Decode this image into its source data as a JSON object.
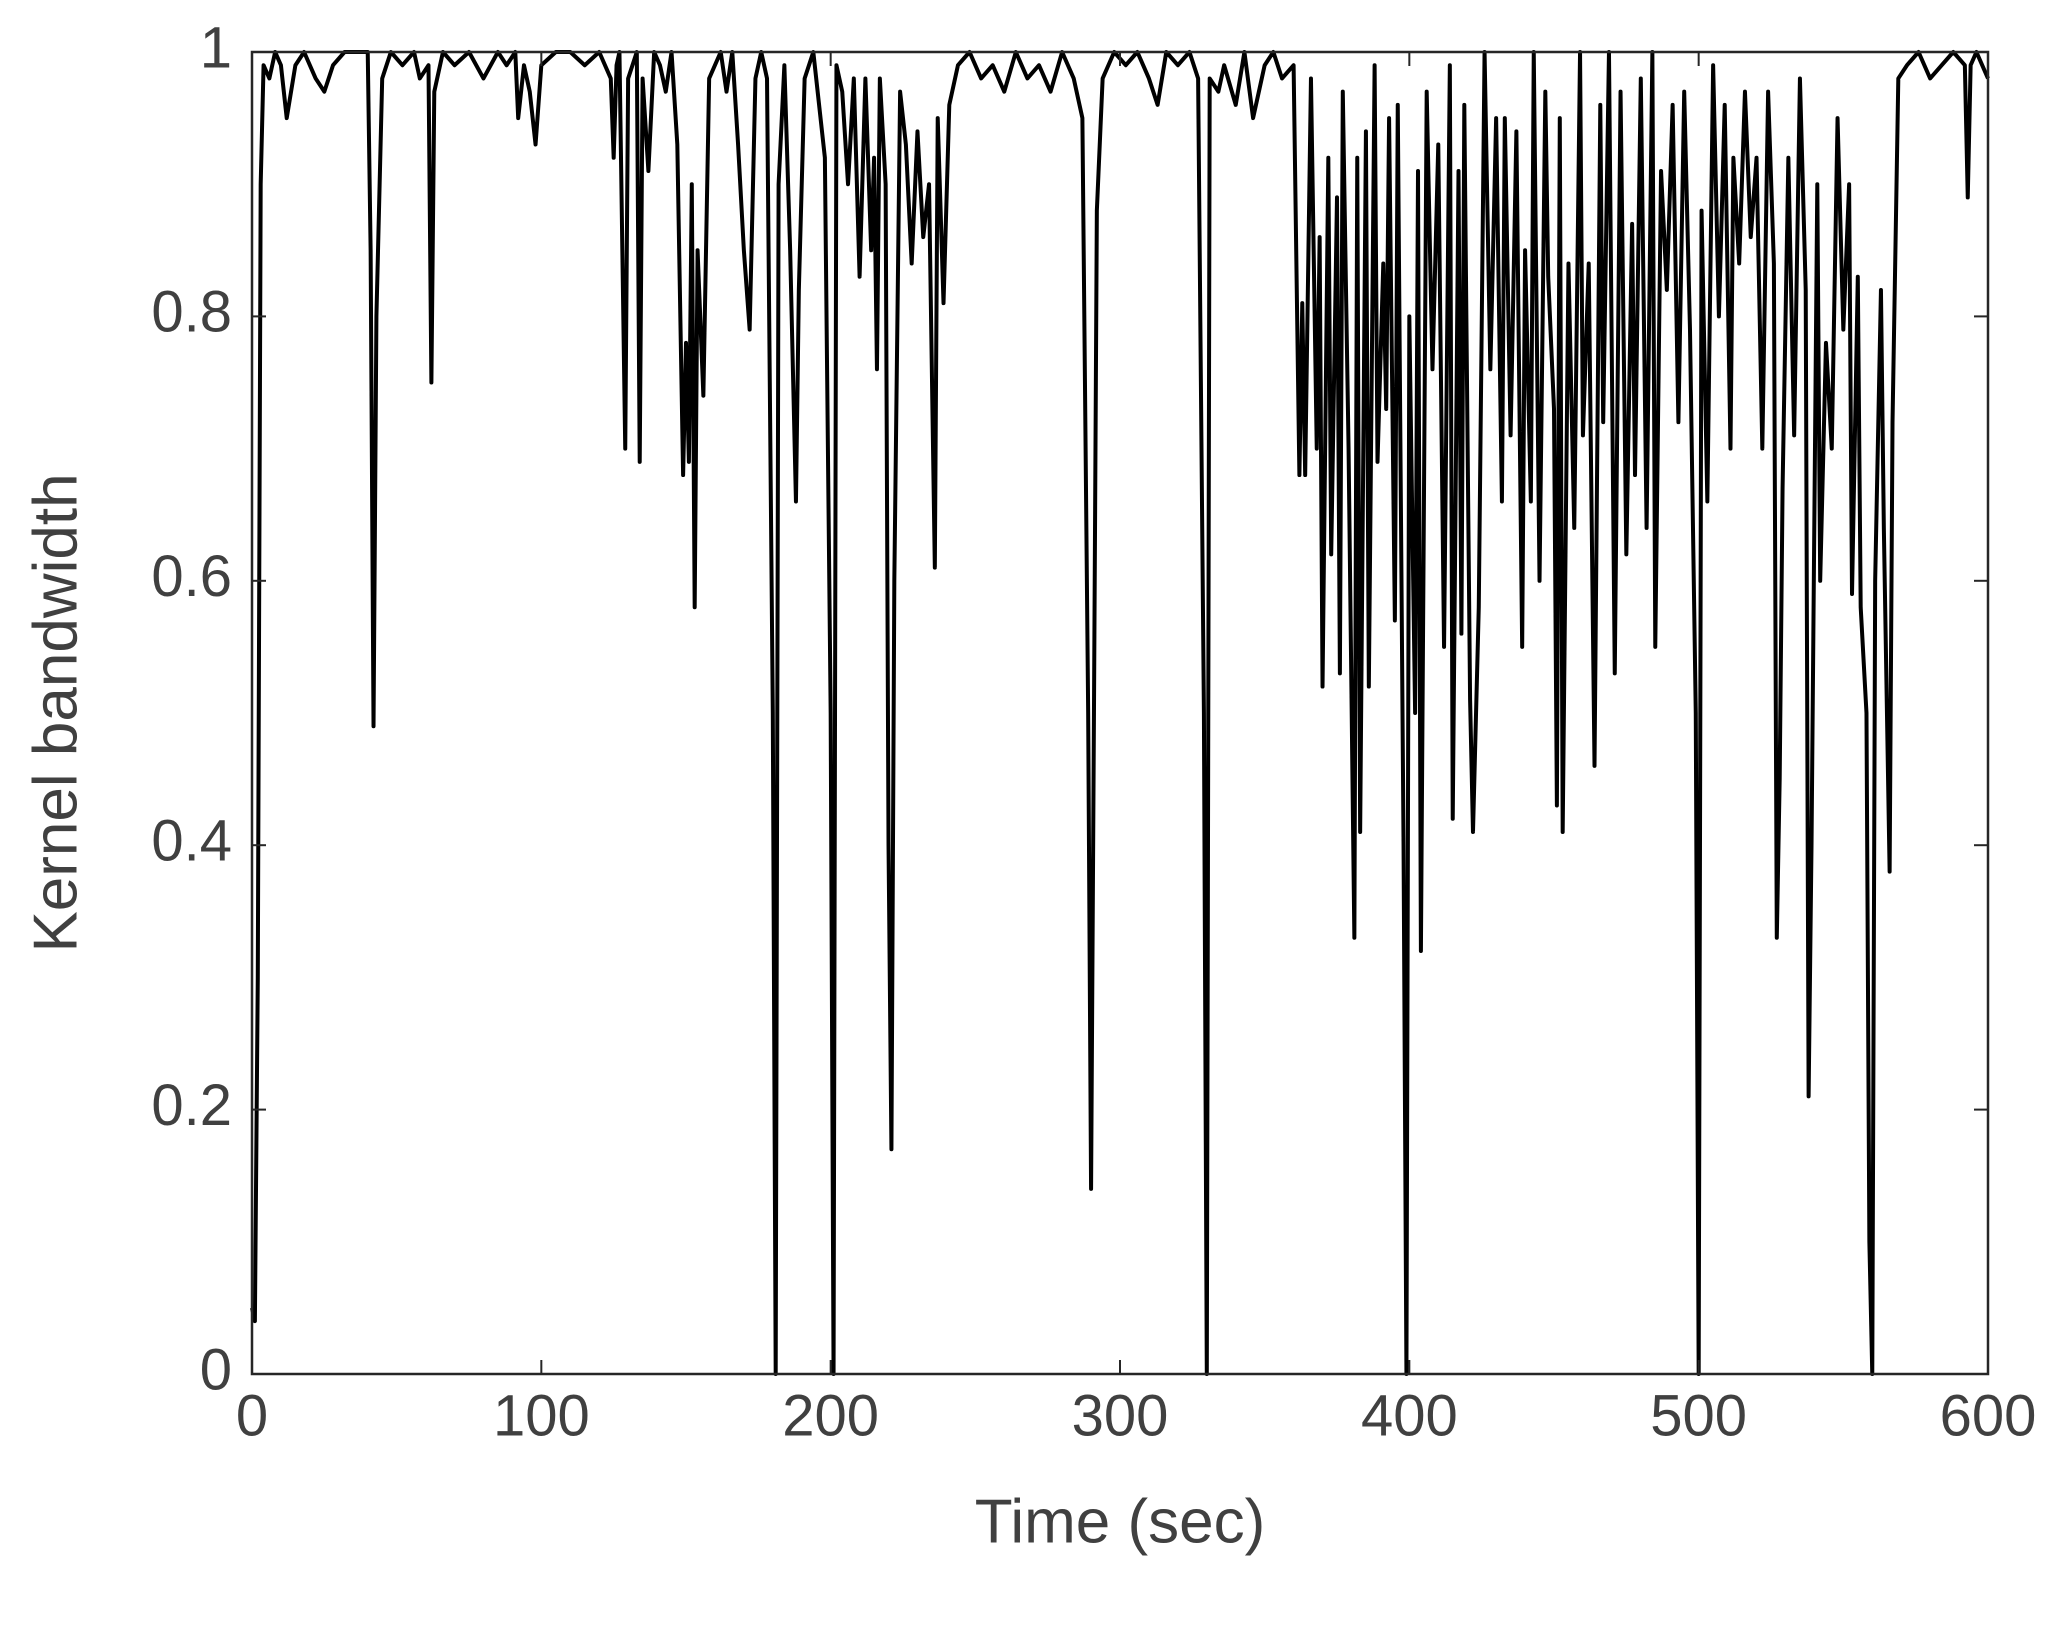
{
  "chart_data": {
    "type": "line",
    "xlabel": "Time (sec)",
    "ylabel": "Kernel bandwidth",
    "color": "#000000",
    "box": true,
    "xlim": [
      0,
      600
    ],
    "xticks": [
      0,
      100,
      200,
      300,
      400,
      500,
      600
    ],
    "ylim": [
      0,
      1
    ],
    "yticks": [
      0,
      0.2,
      0.4,
      0.6,
      0.8,
      1
    ],
    "x": [
      0,
      1,
      2,
      3,
      4,
      6,
      8,
      10,
      12,
      15,
      18,
      22,
      25,
      28,
      32,
      36,
      40,
      41,
      42,
      43,
      45,
      48,
      52,
      56,
      58,
      61,
      62,
      63,
      66,
      70,
      75,
      80,
      85,
      88,
      91,
      92,
      94,
      96,
      98,
      100,
      105,
      110,
      115,
      120,
      124,
      125,
      126,
      127,
      129,
      130,
      133,
      134,
      135,
      137,
      139,
      141,
      143,
      145,
      147,
      149,
      150,
      151,
      152,
      153,
      154,
      156,
      158,
      162,
      164,
      166,
      168,
      170,
      172,
      174,
      176,
      178,
      180,
      181,
      182,
      184,
      186,
      188,
      189,
      191,
      194,
      196,
      198,
      200,
      201,
      202,
      204,
      206,
      208,
      210,
      212,
      214,
      215,
      216,
      217,
      219,
      220,
      221,
      222,
      224,
      226,
      228,
      230,
      232,
      234,
      236,
      237,
      239,
      241,
      244,
      248,
      252,
      256,
      260,
      264,
      268,
      272,
      276,
      280,
      284,
      287,
      289,
      290,
      291,
      292,
      294,
      298,
      302,
      306,
      310,
      313,
      316,
      320,
      324,
      327,
      329,
      330,
      331,
      334,
      336,
      340,
      343,
      346,
      350,
      353,
      356,
      360,
      362,
      363,
      364,
      366,
      368,
      369,
      370,
      372,
      373,
      375,
      376,
      377,
      379,
      381,
      382,
      383,
      385,
      386,
      388,
      389,
      391,
      392,
      393,
      395,
      396,
      398,
      399,
      400,
      402,
      403,
      404,
      406,
      408,
      410,
      412,
      414,
      415,
      417,
      418,
      419,
      421,
      422,
      424,
      426,
      428,
      430,
      432,
      433,
      435,
      437,
      439,
      440,
      442,
      443,
      445,
      447,
      448,
      450,
      451,
      452,
      453,
      455,
      457,
      459,
      460,
      462,
      464,
      466,
      467,
      469,
      471,
      473,
      475,
      477,
      478,
      480,
      482,
      484,
      485,
      487,
      489,
      491,
      493,
      495,
      497,
      499,
      500,
      501,
      503,
      505,
      507,
      509,
      511,
      512,
      514,
      516,
      518,
      520,
      522,
      524,
      526,
      527,
      528,
      529,
      531,
      533,
      535,
      537,
      538,
      539,
      541,
      542,
      544,
      546,
      548,
      550,
      552,
      553,
      555,
      556,
      558,
      559,
      560,
      561,
      563,
      564,
      566,
      567,
      569,
      572,
      576,
      580,
      584,
      588,
      592,
      593,
      594,
      596,
      600
    ],
    "values": [
      0.05,
      0.04,
      0.3,
      0.9,
      0.99,
      0.98,
      1,
      0.99,
      0.95,
      0.99,
      1,
      0.98,
      0.97,
      0.99,
      1,
      1,
      1,
      0.85,
      0.49,
      0.8,
      0.98,
      1,
      0.99,
      1,
      0.98,
      0.99,
      0.75,
      0.97,
      1,
      0.99,
      1,
      0.98,
      1,
      0.99,
      1,
      0.95,
      0.99,
      0.97,
      0.93,
      0.99,
      1,
      1,
      0.99,
      1,
      0.98,
      0.92,
      0.99,
      1,
      0.7,
      0.98,
      1,
      0.69,
      0.98,
      0.91,
      1,
      0.99,
      0.97,
      1,
      0.93,
      0.68,
      0.78,
      0.69,
      0.9,
      0.58,
      0.85,
      0.74,
      0.98,
      1,
      0.97,
      1,
      0.93,
      0.85,
      0.79,
      0.98,
      1,
      0.98,
      0.5,
      0,
      0.9,
      0.99,
      0.85,
      0.66,
      0.82,
      0.98,
      1,
      0.96,
      0.92,
      0.5,
      0,
      0.99,
      0.97,
      0.9,
      0.98,
      0.83,
      0.98,
      0.85,
      0.92,
      0.76,
      0.98,
      0.9,
      0.4,
      0.17,
      0.6,
      0.97,
      0.93,
      0.84,
      0.94,
      0.86,
      0.9,
      0.61,
      0.95,
      0.81,
      0.96,
      0.99,
      1,
      0.98,
      0.99,
      0.97,
      1,
      0.98,
      0.99,
      0.97,
      1,
      0.98,
      0.95,
      0.5,
      0.14,
      0.5,
      0.88,
      0.98,
      1,
      0.99,
      1,
      0.98,
      0.96,
      1,
      0.99,
      1,
      0.98,
      0.5,
      0,
      0.98,
      0.97,
      0.99,
      0.96,
      1,
      0.95,
      0.99,
      1,
      0.98,
      0.99,
      0.68,
      0.81,
      0.68,
      0.98,
      0.7,
      0.86,
      0.52,
      0.92,
      0.62,
      0.89,
      0.53,
      0.97,
      0.7,
      0.33,
      0.92,
      0.41,
      0.94,
      0.52,
      0.99,
      0.69,
      0.84,
      0.73,
      0.95,
      0.57,
      0.96,
      0.4,
      0,
      0.8,
      0.5,
      0.91,
      0.32,
      0.97,
      0.76,
      0.93,
      0.55,
      0.99,
      0.42,
      0.91,
      0.56,
      0.96,
      0.51,
      0.41,
      0.58,
      1,
      0.76,
      0.95,
      0.66,
      0.95,
      0.71,
      0.94,
      0.55,
      0.85,
      0.66,
      1,
      0.6,
      0.97,
      0.83,
      0.73,
      0.43,
      0.95,
      0.41,
      0.84,
      0.64,
      1,
      0.71,
      0.84,
      0.46,
      0.96,
      0.72,
      1,
      0.53,
      0.97,
      0.62,
      0.87,
      0.68,
      0.98,
      0.64,
      1,
      0.55,
      0.91,
      0.82,
      0.96,
      0.72,
      0.97,
      0.79,
      0.5,
      0,
      0.88,
      0.66,
      0.99,
      0.8,
      0.96,
      0.7,
      0.92,
      0.84,
      0.97,
      0.86,
      0.92,
      0.7,
      0.97,
      0.84,
      0.33,
      0.45,
      0.67,
      0.92,
      0.71,
      0.98,
      0.82,
      0.21,
      0.4,
      0.9,
      0.6,
      0.78,
      0.7,
      0.95,
      0.79,
      0.9,
      0.59,
      0.83,
      0.58,
      0.5,
      0.1,
      0,
      0.6,
      0.82,
      0.64,
      0.38,
      0.72,
      0.98,
      0.99,
      1,
      0.98,
      0.99,
      1,
      0.99,
      0.89,
      0.99,
      1,
      0.98
    ]
  }
}
